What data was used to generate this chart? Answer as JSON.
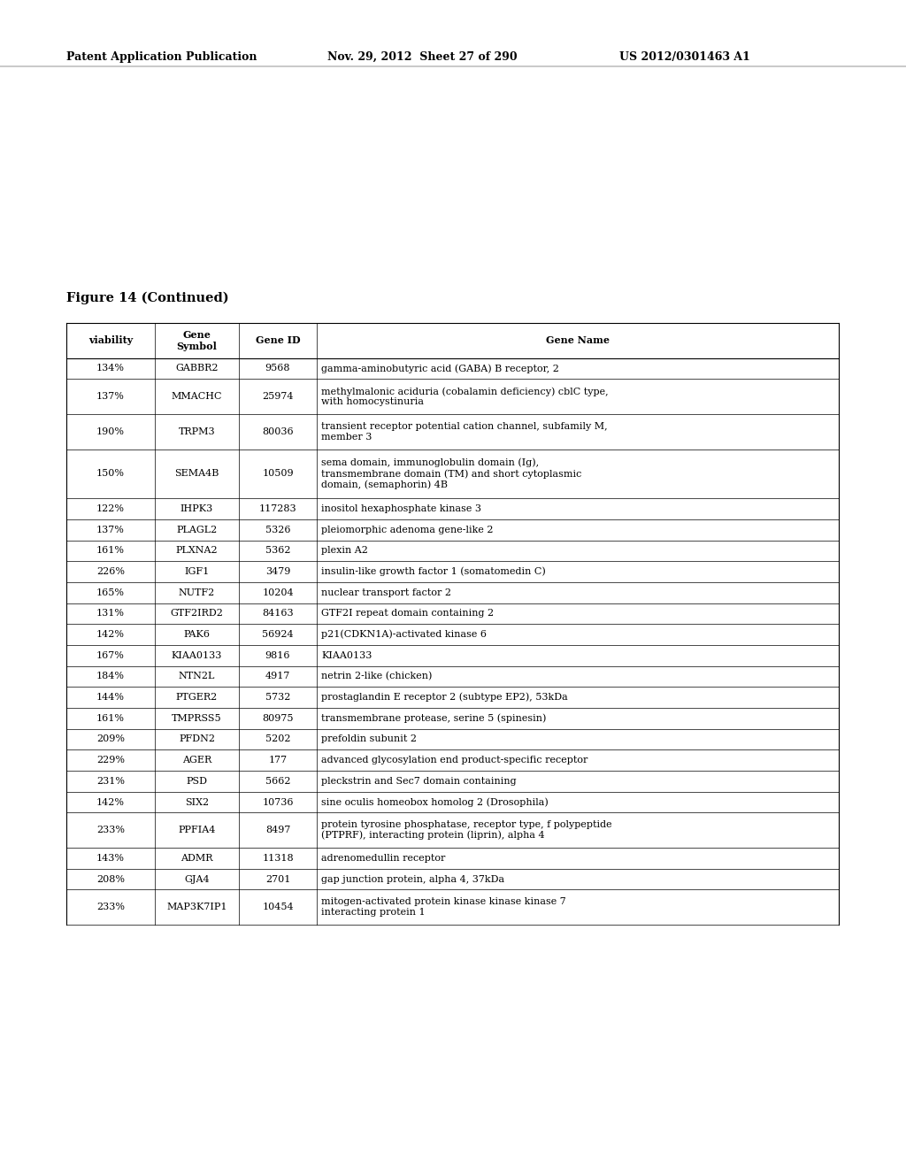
{
  "header_left": "Patent Application Publication",
  "header_mid": "Nov. 29, 2012  Sheet 27 of 290",
  "header_right": "US 2012/0301463 A1",
  "figure_label": "Figure 14 (Continued)",
  "col_headers": [
    "viability",
    "Gene\nSymbol",
    "Gene ID",
    "Gene Name"
  ],
  "rows": [
    [
      "134%",
      "GABBR2",
      "9568",
      "gamma-aminobutyric acid (GABA) B receptor, 2"
    ],
    [
      "137%",
      "MMACHC",
      "25974",
      "methylmalonic aciduria (cobalamin deficiency) cblC type,\nwith homocystinuria"
    ],
    [
      "190%",
      "TRPM3",
      "80036",
      "transient receptor potential cation channel, subfamily M,\nmember 3"
    ],
    [
      "150%",
      "SEMA4B",
      "10509",
      "sema domain, immunoglobulin domain (Ig),\ntransmembrane domain (TM) and short cytoplasmic\ndomain, (semaphorin) 4B"
    ],
    [
      "122%",
      "IHPK3",
      "117283",
      "inositol hexaphosphate kinase 3"
    ],
    [
      "137%",
      "PLAGL2",
      "5326",
      "pleiomorphic adenoma gene-like 2"
    ],
    [
      "161%",
      "PLXNA2",
      "5362",
      "plexin A2"
    ],
    [
      "226%",
      "IGF1",
      "3479",
      "insulin-like growth factor 1 (somatomedin C)"
    ],
    [
      "165%",
      "NUTF2",
      "10204",
      "nuclear transport factor 2"
    ],
    [
      "131%",
      "GTF2IRD2",
      "84163",
      "GTF2I repeat domain containing 2"
    ],
    [
      "142%",
      "PAK6",
      "56924",
      "p21(CDKN1A)-activated kinase 6"
    ],
    [
      "167%",
      "KIAA0133",
      "9816",
      "KIAA0133"
    ],
    [
      "184%",
      "NTN2L",
      "4917",
      "netrin 2-like (chicken)"
    ],
    [
      "144%",
      "PTGER2",
      "5732",
      "prostaglandin E receptor 2 (subtype EP2), 53kDa"
    ],
    [
      "161%",
      "TMPRSS5",
      "80975",
      "transmembrane protease, serine 5 (spinesin)"
    ],
    [
      "209%",
      "PFDN2",
      "5202",
      "prefoldin subunit 2"
    ],
    [
      "229%",
      "AGER",
      "177",
      "advanced glycosylation end product-specific receptor"
    ],
    [
      "231%",
      "PSD",
      "5662",
      "pleckstrin and Sec7 domain containing"
    ],
    [
      "142%",
      "SIX2",
      "10736",
      "sine oculis homeobox homolog 2 (Drosophila)"
    ],
    [
      "233%",
      "PPFIA4",
      "8497",
      "protein tyrosine phosphatase, receptor type, f polypeptide\n(PTPRF), interacting protein (liprin), alpha 4"
    ],
    [
      "143%",
      "ADMR",
      "11318",
      "adrenomedullin receptor"
    ],
    [
      "208%",
      "GJA4",
      "2701",
      "gap junction protein, alpha 4, 37kDa"
    ],
    [
      "233%",
      "MAP3K7IP1",
      "10454",
      "mitogen-activated protein kinase kinase kinase 7\ninteracting protein 1"
    ]
  ],
  "background_color": "#ffffff",
  "text_color": "#000000"
}
